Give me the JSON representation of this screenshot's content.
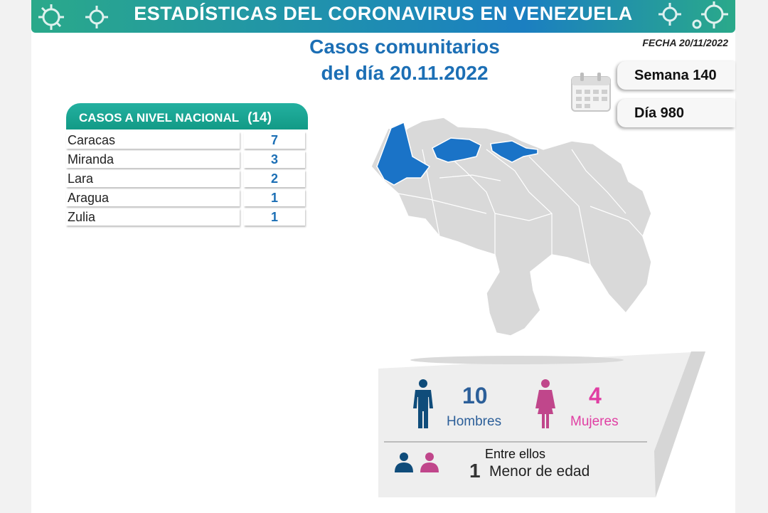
{
  "header": {
    "title": "ESTADÍSTICAS DEL CORONAVIRUS EN VENEZUELA"
  },
  "report": {
    "title_line1": "Casos comunitarios",
    "title_line2": "del día 20.11.2022",
    "fecha": "FECHA 20/11/2022",
    "semana": "Semana 140",
    "dia": "Día 980"
  },
  "table": {
    "header_label": "CASOS A NIVEL NACIONAL",
    "header_total": "(14)",
    "rows": [
      {
        "name": "Caracas",
        "value": "7"
      },
      {
        "name": "Miranda",
        "value": "3"
      },
      {
        "name": "Lara",
        "value": "2"
      },
      {
        "name": "Aragua",
        "value": "1"
      },
      {
        "name": "Zulia",
        "value": "1"
      }
    ]
  },
  "demographics": {
    "men_count": "10",
    "men_label": "Hombres",
    "women_count": "4",
    "women_label": "Mujeres",
    "entre_label": "Entre ellos",
    "minor_count": "1",
    "minor_label": "Menor de edad"
  },
  "colors": {
    "accent_blue": "#1c6fb5",
    "teal": "#1a9f8c",
    "men": "#0f4c7a",
    "women": "#e03fa3",
    "map_highlight": "#1a73c7",
    "map_base": "#d9d9d9"
  },
  "icons": {
    "banner_left": "virus-icon",
    "banner_right": "virus-icon",
    "calendar": "calendar-icon",
    "man": "man-icon",
    "woman": "woman-icon",
    "group": "people-icon"
  }
}
